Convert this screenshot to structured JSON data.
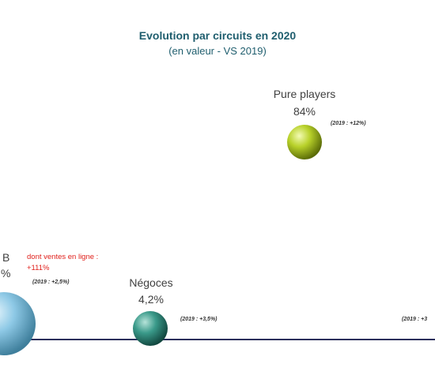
{
  "chart_data": {
    "type": "scatter",
    "title": "Evolution par circuits en 2020",
    "subtitle": "(en valeur - VS 2019)",
    "colors": {
      "baseline": "#2b2f5c",
      "label": "#404040",
      "note": "#333333",
      "highlight": "#e0201b"
    },
    "points": [
      {
        "name": "GSB",
        "name_shown": "B",
        "value": "",
        "value_shown": "%",
        "note_2019": "(2019 : +2,5%)",
        "extra_line1": "dont ventes en ligne :",
        "extra_line2": "+111%",
        "color": "#8ec9e6"
      },
      {
        "name": "Négoces",
        "value": "4,2%",
        "note_2019": "(2019 : +3,5%)",
        "color": "#3a9a8a"
      },
      {
        "name": "Pure players",
        "value": "84%",
        "note_2019": "(2019 : +12%)",
        "color": "#b8d12a"
      },
      {
        "name": "",
        "note_2019": "(2019 : +3",
        "color": "#cccccc"
      }
    ]
  }
}
